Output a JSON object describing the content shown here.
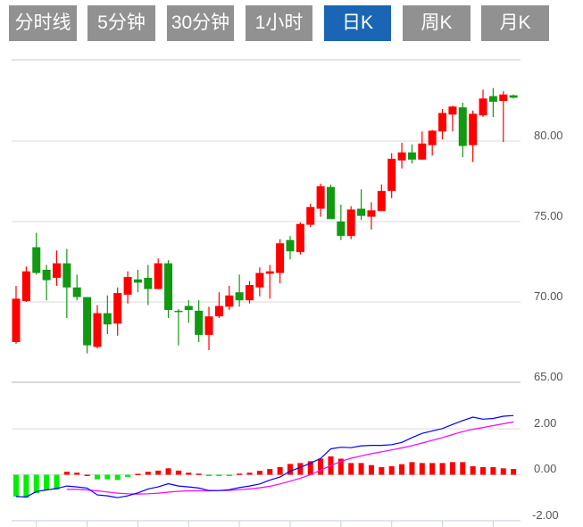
{
  "tabs": [
    {
      "label": "分时线",
      "active": false
    },
    {
      "label": "5分钟",
      "active": false
    },
    {
      "label": "30分钟",
      "active": false
    },
    {
      "label": "1小时",
      "active": false
    },
    {
      "label": "日K",
      "active": true
    },
    {
      "label": "周K",
      "active": false
    },
    {
      "label": "月K",
      "active": false
    }
  ],
  "colors": {
    "up": "#ff0000",
    "down": "#119911",
    "hist_up": "#ff0000",
    "hist_down": "#00ee00",
    "dif": "#0000ff",
    "dea": "#ff00ff",
    "active_tab": "#1a66b5",
    "tab": "#919191"
  },
  "chart_data": [
    {
      "type": "candlestick",
      "title": "日K",
      "ylim": [
        65,
        85
      ],
      "y_ticks": [
        "80.00",
        "75.00",
        "70.00",
        "65.00"
      ],
      "y_tick_values": [
        80,
        75,
        70,
        65
      ],
      "ohlc": [
        [
          67.5,
          70.2,
          71.0,
          67.4
        ],
        [
          70.05,
          71.9,
          72.2,
          70.0
        ],
        [
          73.4,
          71.8,
          74.3,
          71.7
        ],
        [
          72.0,
          71.35,
          72.3,
          70.1
        ],
        [
          71.5,
          72.4,
          73.2,
          71.0
        ],
        [
          72.4,
          70.9,
          73.3,
          69.0
        ],
        [
          70.9,
          70.3,
          71.7,
          70.1
        ],
        [
          70.3,
          67.3,
          70.3,
          66.8
        ],
        [
          67.2,
          69.3,
          69.8,
          67.1
        ],
        [
          69.3,
          68.6,
          70.4,
          68.0
        ],
        [
          68.65,
          70.55,
          70.9,
          67.9
        ],
        [
          70.45,
          71.55,
          71.9,
          69.9
        ],
        [
          71.4,
          71.2,
          72.0,
          70.6
        ],
        [
          71.5,
          70.8,
          72.3,
          69.8
        ],
        [
          70.8,
          72.4,
          72.7,
          70.8
        ],
        [
          72.4,
          69.5,
          72.6,
          69.0
        ],
        [
          69.45,
          69.4,
          69.55,
          67.3
        ],
        [
          69.75,
          69.5,
          70.1,
          68.7
        ],
        [
          69.45,
          67.95,
          70.1,
          67.5
        ],
        [
          67.95,
          69.1,
          69.7,
          67.0
        ],
        [
          69.1,
          69.75,
          70.6,
          69.0
        ],
        [
          69.7,
          70.4,
          71.0,
          69.5
        ],
        [
          70.6,
          70.1,
          71.7,
          69.7
        ],
        [
          70.1,
          71.05,
          71.3,
          69.9
        ],
        [
          70.9,
          71.8,
          72.15,
          70.35
        ],
        [
          71.75,
          71.9,
          72.3,
          70.2
        ],
        [
          71.8,
          73.65,
          73.9,
          71.15
        ],
        [
          73.85,
          73.15,
          74.1,
          72.65
        ],
        [
          73.1,
          74.85,
          74.95,
          72.95
        ],
        [
          74.8,
          75.9,
          76.1,
          74.65
        ],
        [
          75.8,
          77.2,
          77.35,
          75.3
        ],
        [
          77.15,
          75.15,
          77.3,
          75.15
        ],
        [
          75.0,
          74.1,
          76.05,
          73.85
        ],
        [
          74.1,
          75.75,
          75.95,
          73.9
        ],
        [
          75.8,
          75.35,
          77.0,
          75.1
        ],
        [
          75.3,
          75.7,
          76.2,
          74.5
        ],
        [
          75.65,
          76.9,
          77.3,
          75.65
        ],
        [
          76.9,
          78.9,
          79.25,
          76.45
        ],
        [
          78.8,
          79.3,
          79.9,
          78.3
        ],
        [
          79.3,
          78.85,
          79.8,
          78.6
        ],
        [
          78.85,
          79.85,
          80.6,
          78.85
        ],
        [
          79.75,
          80.65,
          80.7,
          79.1
        ],
        [
          80.6,
          81.75,
          82.0,
          80.1
        ],
        [
          81.65,
          82.15,
          82.2,
          80.6
        ],
        [
          82.1,
          79.7,
          82.4,
          79.0
        ],
        [
          79.75,
          81.7,
          81.9,
          78.7
        ],
        [
          81.6,
          82.65,
          83.2,
          81.5
        ],
        [
          82.8,
          82.45,
          83.3,
          81.5
        ],
        [
          82.5,
          82.9,
          83.1,
          79.95
        ],
        [
          82.85,
          82.7,
          82.9,
          82.65
        ]
      ]
    },
    {
      "type": "macd",
      "ylim": [
        -2,
        2.5
      ],
      "y_ticks": [
        "2.00",
        "0.00",
        "-2.00"
      ],
      "y_tick_values": [
        2,
        0,
        -2
      ],
      "histogram": [
        -0.95,
        -1.0,
        -0.8,
        -0.66,
        -0.65,
        0.13,
        0.09,
        0.0,
        -0.2,
        -0.2,
        -0.23,
        -0.1,
        0.04,
        0.13,
        0.18,
        0.28,
        0.18,
        0.09,
        0.05,
        -0.04,
        -0.04,
        -0.03,
        0.05,
        0.09,
        0.17,
        0.25,
        0.33,
        0.47,
        0.51,
        0.59,
        0.7,
        0.8,
        0.7,
        0.51,
        0.51,
        0.42,
        0.33,
        0.37,
        0.46,
        0.55,
        0.51,
        0.51,
        0.51,
        0.55,
        0.55,
        0.37,
        0.33,
        0.33,
        0.28,
        0.25
      ],
      "dif": [
        -0.95,
        -0.97,
        -0.73,
        -0.66,
        -0.6,
        -0.49,
        -0.53,
        -0.58,
        -0.88,
        -0.92,
        -1.0,
        -0.92,
        -0.79,
        -0.62,
        -0.53,
        -0.39,
        -0.49,
        -0.53,
        -0.58,
        -0.69,
        -0.69,
        -0.65,
        -0.56,
        -0.49,
        -0.4,
        -0.23,
        -0.1,
        0.16,
        0.32,
        0.5,
        0.71,
        1.13,
        1.2,
        1.18,
        1.26,
        1.28,
        1.28,
        1.31,
        1.41,
        1.62,
        1.8,
        1.91,
        2.01,
        2.19,
        2.36,
        2.51,
        2.42,
        2.45,
        2.55,
        2.58
      ],
      "dea": [
        null,
        null,
        null,
        null,
        null,
        -0.64,
        -0.64,
        -0.66,
        -0.7,
        -0.75,
        -0.8,
        -0.83,
        -0.84,
        -0.83,
        -0.8,
        -0.76,
        -0.72,
        -0.7,
        -0.7,
        -0.7,
        -0.69,
        -0.68,
        -0.65,
        -0.62,
        -0.57,
        -0.5,
        -0.4,
        -0.28,
        -0.15,
        0.0,
        0.2,
        0.4,
        0.58,
        0.72,
        0.82,
        0.92,
        1.0,
        1.08,
        1.17,
        1.27,
        1.38,
        1.5,
        1.62,
        1.75,
        1.88,
        1.98,
        2.06,
        2.14,
        2.22,
        2.3
      ],
      "x_tick_every": 5,
      "x_tick_offset": 2
    }
  ]
}
